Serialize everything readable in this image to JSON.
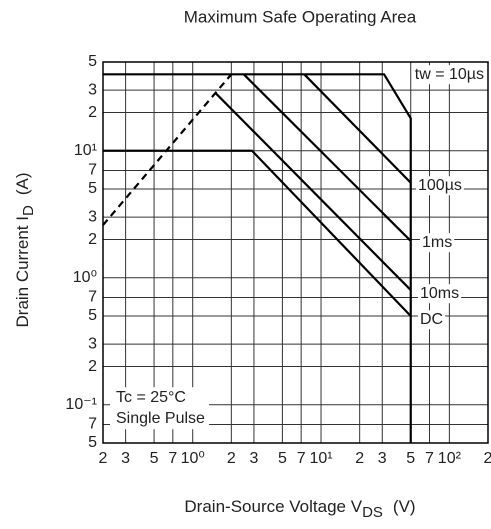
{
  "chart_data": {
    "type": "line",
    "title": "Maximum Safe Operating Area",
    "xlabel": "Drain-Source Voltage V",
    "xlabel_sub": "DS",
    "xlabel_unit": "(V)",
    "ylabel": "Drain Current I",
    "ylabel_sub": "D",
    "ylabel_unit": "(A)",
    "xscale": "log",
    "yscale": "log",
    "grid": true,
    "xlim": [
      0.2,
      200
    ],
    "ylim": [
      0.05,
      50
    ],
    "xticks": [
      {
        "value": 0.2,
        "label": "2"
      },
      {
        "value": 0.3,
        "label": "3"
      },
      {
        "value": 0.5,
        "label": "5"
      },
      {
        "value": 0.7,
        "label": "7"
      },
      {
        "value": 1,
        "label": "10⁰"
      },
      2,
      3,
      5,
      7,
      {
        "value": 10,
        "label": "10¹"
      },
      {
        "value": 20,
        "label": "2"
      },
      {
        "value": 30,
        "label": "3"
      },
      {
        "value": 50,
        "label": "5"
      },
      {
        "value": 70,
        "label": "7"
      },
      {
        "value": 100,
        "label": "10²"
      },
      {
        "value": 200,
        "label": "2"
      }
    ],
    "yticks": [
      {
        "value": 50,
        "label": "5"
      },
      {
        "value": 30,
        "label": "3"
      },
      {
        "value": 20,
        "label": "2"
      },
      {
        "value": 10,
        "label": "10¹"
      },
      7,
      5,
      3,
      2,
      {
        "value": 1,
        "label": "10⁰"
      },
      {
        "value": 0.7,
        "label": "7"
      },
      {
        "value": 0.5,
        "label": "5"
      },
      {
        "value": 0.3,
        "label": "3"
      },
      {
        "value": 0.2,
        "label": "2"
      },
      {
        "value": 0.1,
        "label": "10⁻¹"
      },
      {
        "value": 0.07,
        "label": "7"
      },
      {
        "value": 0.05,
        "label": "5"
      }
    ],
    "series": [
      {
        "name": "tw = 10µs",
        "color": "#000000",
        "x": [
          0.2,
          31,
          50,
          50
        ],
        "values": [
          40,
          40,
          18,
          0.05
        ]
      },
      {
        "name": "100µs",
        "color": "#000000",
        "x": [
          7.4,
          50
        ],
        "values": [
          40,
          5.6
        ]
      },
      {
        "name": "1ms",
        "color": "#000000",
        "x": [
          2.5,
          50
        ],
        "values": [
          40,
          1.95
        ]
      },
      {
        "name": "10ms",
        "color": "#000000",
        "x": [
          1.5,
          50
        ],
        "values": [
          28.6,
          0.8
        ]
      },
      {
        "name": "DC",
        "color": "#000000",
        "x": [
          0.2,
          2.9,
          50
        ],
        "values": [
          10,
          10,
          0.5
        ]
      },
      {
        "color": "#000000",
        "dashed": true,
        "x": [
          0.2,
          2
        ],
        "values": [
          2.6,
          40
        ]
      }
    ],
    "annotations": [
      "Tc = 25°C",
      "Single Pulse"
    ]
  }
}
